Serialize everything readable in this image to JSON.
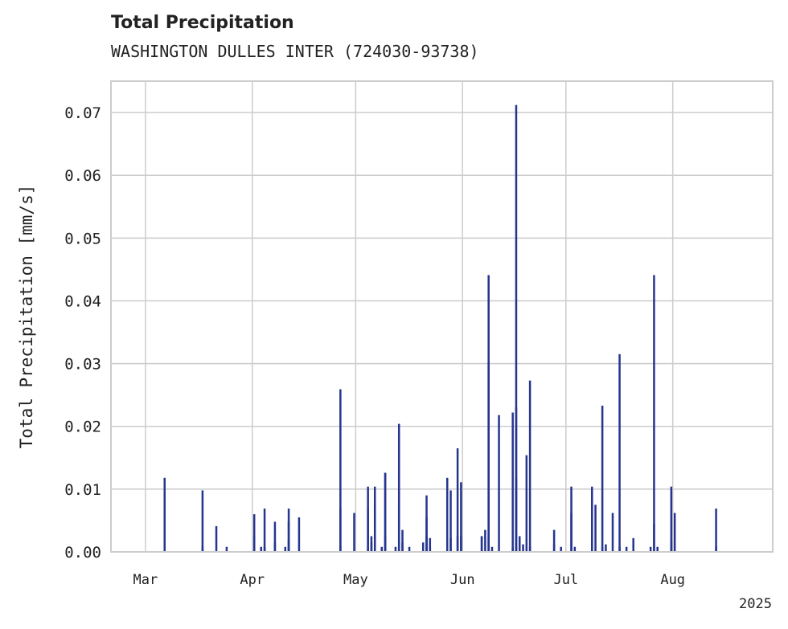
{
  "chart_data": {
    "type": "bar",
    "title": "Total Precipitation",
    "subtitle": "WASHINGTON DULLES INTER (724030-93738)",
    "ylabel": "Total Precipitation [mm/s]",
    "xlabel": "",
    "year_label": "2025",
    "ylim": [
      0,
      0.075
    ],
    "y_ticks": [
      0.0,
      0.01,
      0.02,
      0.03,
      0.04,
      0.05,
      0.06,
      0.07
    ],
    "y_tick_labels": [
      "0.00",
      "0.01",
      "0.02",
      "0.03",
      "0.04",
      "0.05",
      "0.06",
      "0.07"
    ],
    "xlim": [
      "2025-02-19",
      "2025-08-30"
    ],
    "x_ticks": [
      "2025-03-01",
      "2025-04-01",
      "2025-05-01",
      "2025-06-01",
      "2025-07-01",
      "2025-08-01"
    ],
    "x_tick_labels": [
      "Mar",
      "Apr",
      "May",
      "Jun",
      "Jul",
      "Aug"
    ],
    "grid": true,
    "bar_color": "#25358f",
    "series": [
      {
        "x": [
          "2025-03-06",
          "2025-03-06",
          "2025-03-06",
          "2025-03-17",
          "2025-03-17",
          "2025-03-21",
          "2025-03-24",
          "2025-04-01",
          "2025-04-01",
          "2025-04-03",
          "2025-04-04",
          "2025-04-04",
          "2025-04-07",
          "2025-04-07",
          "2025-04-10",
          "2025-04-11",
          "2025-04-11",
          "2025-04-11",
          "2025-04-14",
          "2025-04-26",
          "2025-04-26",
          "2025-04-26",
          "2025-04-30",
          "2025-05-04",
          "2025-05-04",
          "2025-05-05",
          "2025-05-05",
          "2025-05-06",
          "2025-05-06",
          "2025-05-08",
          "2025-05-09",
          "2025-05-09",
          "2025-05-09",
          "2025-05-12",
          "2025-05-13",
          "2025-05-13",
          "2025-05-13",
          "2025-05-14",
          "2025-05-14",
          "2025-05-16",
          "2025-05-20",
          "2025-05-21",
          "2025-05-21",
          "2025-05-21",
          "2025-05-22",
          "2025-05-22",
          "2025-05-27",
          "2025-05-27",
          "2025-05-28",
          "2025-05-28",
          "2025-05-30",
          "2025-05-30",
          "2025-05-31",
          "2025-05-31",
          "2025-06-06",
          "2025-06-06",
          "2025-06-07",
          "2025-06-08",
          "2025-06-08",
          "2025-06-08",
          "2025-06-09",
          "2025-06-11",
          "2025-06-15",
          "2025-06-15",
          "2025-06-16",
          "2025-06-16",
          "2025-06-16",
          "2025-06-17",
          "2025-06-17",
          "2025-06-18",
          "2025-06-19",
          "2025-06-20",
          "2025-06-20",
          "2025-06-27",
          "2025-06-27",
          "2025-06-29",
          "2025-07-02",
          "2025-07-02",
          "2025-07-03",
          "2025-07-08",
          "2025-07-08",
          "2025-07-09",
          "2025-07-11",
          "2025-07-11",
          "2025-07-12",
          "2025-07-14",
          "2025-07-16",
          "2025-07-16",
          "2025-07-18",
          "2025-07-20",
          "2025-07-25",
          "2025-07-26",
          "2025-07-26",
          "2025-07-27",
          "2025-07-31",
          "2025-07-31",
          "2025-08-01",
          "2025-08-13",
          "2025-08-13"
        ],
        "values": [
          0.0118,
          0.0069,
          0.0008,
          0.0098,
          0.0008,
          0.0041,
          0.0008,
          0.006,
          0.0025,
          0.0008,
          0.0008,
          0.0069,
          0.0048,
          0.0015,
          0.0008,
          0.0048,
          0.0069,
          0.0018,
          0.0055,
          0.0259,
          0.0069,
          0.0008,
          0.0062,
          0.0104,
          0.0069,
          0.0015,
          0.0025,
          0.0104,
          0.0075,
          0.0008,
          0.0126,
          0.0126,
          0.0025,
          0.0008,
          0.008,
          0.0204,
          0.013,
          0.0015,
          0.0035,
          0.0008,
          0.0015,
          0.0055,
          0.009,
          0.0025,
          0.0022,
          0.0008,
          0.0022,
          0.0118,
          0.0098,
          0.0022,
          0.0025,
          0.0165,
          0.0111,
          0.0025,
          0.0025,
          0.0025,
          0.0035,
          0.0025,
          0.0441,
          0.0302,
          0.0008,
          0.0218,
          0.0222,
          0.0008,
          0.0712,
          0.023,
          0.0118,
          0.0025,
          0.0008,
          0.0012,
          0.0154,
          0.0273,
          0.0008,
          0.0035,
          0.0012,
          0.0008,
          0.0104,
          0.0062,
          0.0008,
          0.0104,
          0.0015,
          0.0075,
          0.0233,
          0.0008,
          0.0012,
          0.0062,
          0.0315,
          0.0008,
          0.0008,
          0.0022,
          0.0008,
          0.0441,
          0.0045,
          0.0008,
          0.0104,
          0.0018,
          0.0062,
          0.0069,
          0.0008
        ]
      }
    ]
  }
}
